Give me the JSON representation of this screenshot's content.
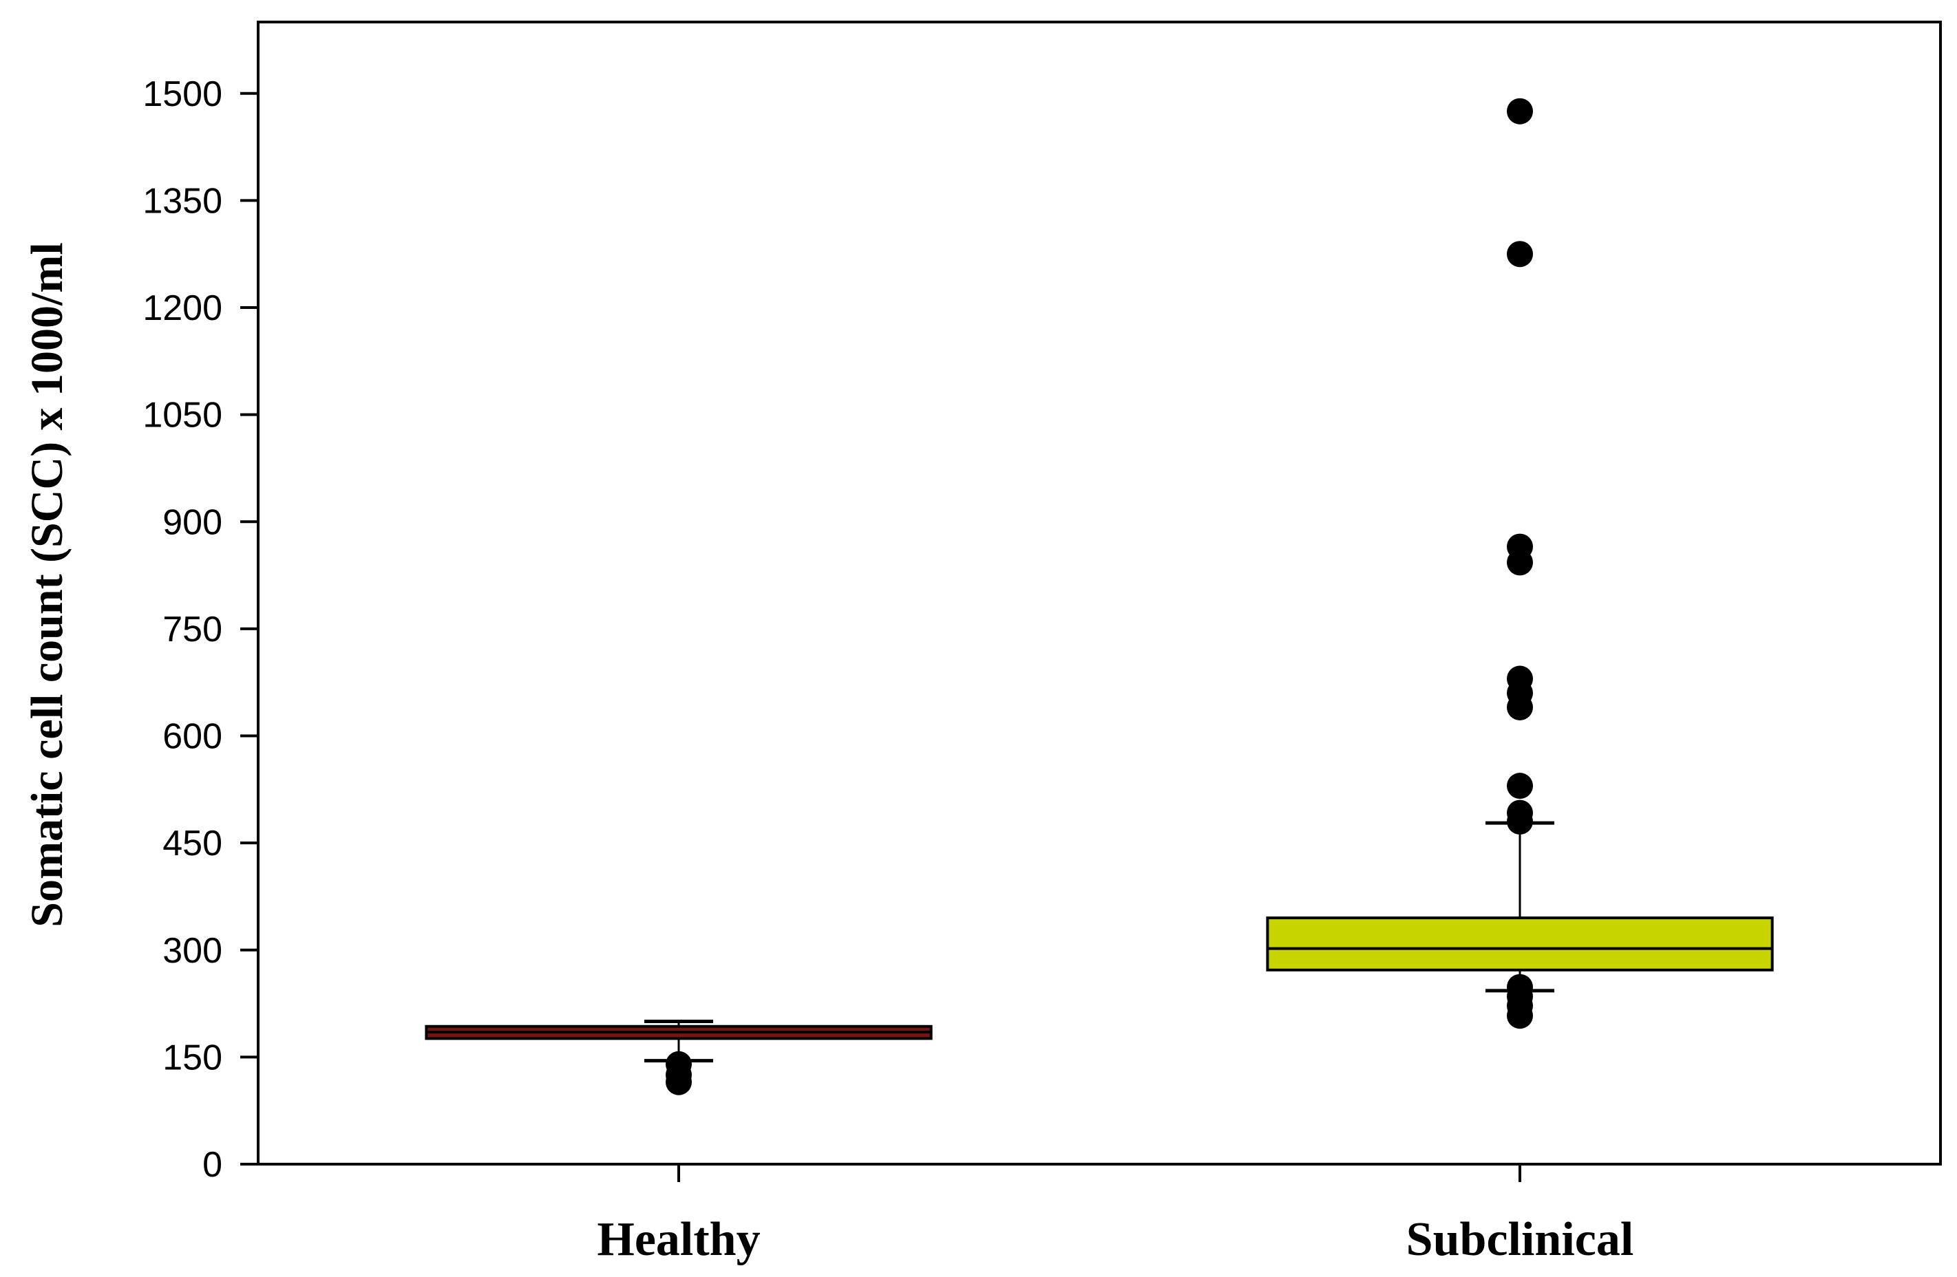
{
  "chart_data": {
    "type": "box",
    "title": "",
    "xlabel": "",
    "ylabel": "Somatic cell count (SCC) x 1000/ml",
    "ylim": [
      0,
      1600
    ],
    "yticks": [
      0,
      150,
      300,
      450,
      600,
      750,
      900,
      1050,
      1200,
      1350,
      1500
    ],
    "grid": false,
    "categories": [
      "Healthy",
      "Subclinical"
    ],
    "boxes": [
      {
        "name": "Healthy",
        "color": "#7a1414",
        "whisker_low": 145,
        "q1": 176,
        "median": 185,
        "q3": 193,
        "whisker_high": 200,
        "outliers": [
          140,
          125,
          115
        ]
      },
      {
        "name": "Subclinical",
        "color": "#c8d400",
        "whisker_low": 243,
        "q1": 272,
        "median": 302,
        "q3": 345,
        "whisker_high": 478,
        "outliers": [
          1475,
          1275,
          865,
          843,
          680,
          660,
          640,
          530,
          492,
          480,
          248,
          235,
          222,
          208
        ]
      }
    ]
  }
}
